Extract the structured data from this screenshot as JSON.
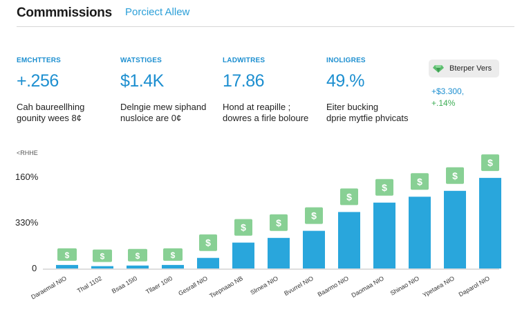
{
  "header": {
    "title": "Commmissions",
    "subtitle": "Porciect Allew"
  },
  "kpis": [
    {
      "label": "EMCHTTERS",
      "value": "+.256",
      "desc_line1": "Cah baureellhing",
      "desc_line2": "gounity wees 8¢"
    },
    {
      "label": "WATSTIGES",
      "value": "$1.4K",
      "desc_line1": "Delngie mew siphand",
      "desc_line2": "nusloice are 0¢"
    },
    {
      "label": "LADWITRES",
      "value": "17.86",
      "desc_line1": "Hond at reapille ;",
      "desc_line2": "dowres a firle boloure"
    },
    {
      "label": "INOLIGRES",
      "value": "49.%",
      "desc_line1": "Eiter bucking",
      "desc_line2": "dprie mytfie phvicats"
    }
  ],
  "legend": {
    "label": "Bterper Vers",
    "icon": "gem-icon"
  },
  "side_stats": {
    "stat1": "+$3.300,",
    "stat2": "+.14%"
  },
  "colors": {
    "accent": "#1d8fd0",
    "bar": "#29a6dc",
    "dollar_bg": "#88d094",
    "green": "#3dad55"
  },
  "chart_data": {
    "type": "bar",
    "tag": "<RHHE",
    "y_tick_labels": [
      "160%",
      "330%",
      "0"
    ],
    "categories": [
      "Daraemal NIO",
      "Thal 1102",
      "Bsaa 15I0",
      "Tllaer 10I0",
      "Gesrall NIO",
      "Tsepnaao NB",
      "Slrnea NIO",
      "Bvurrel NIO",
      "Baarmo NIO",
      "Daomaa NIO",
      "Shinao NIO",
      "Ypetaea NIO",
      "Daparol NIO"
    ],
    "values": [
      3,
      2,
      2.5,
      3,
      9,
      22,
      26,
      32,
      48,
      56,
      61,
      66,
      77
    ],
    "marker_labels": [
      "$",
      "$",
      "$",
      "$",
      "$",
      "$",
      "$",
      "$",
      "$",
      "$",
      "$",
      "$",
      "$"
    ],
    "ylim": [
      0,
      100
    ]
  }
}
